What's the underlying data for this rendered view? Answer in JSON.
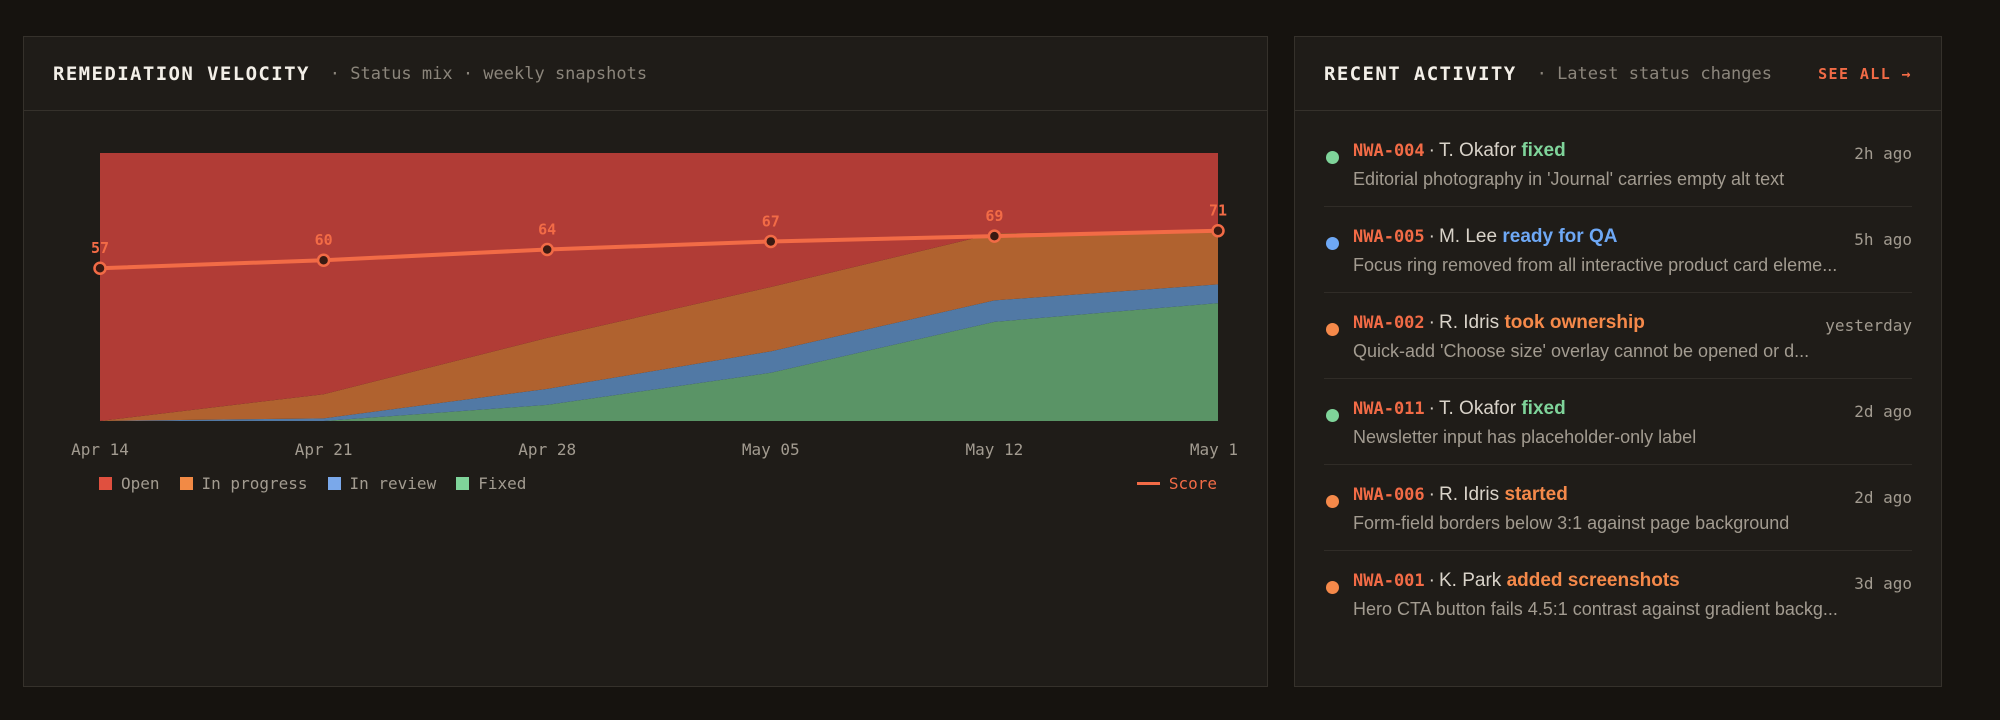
{
  "colors": {
    "open": "#b13c36",
    "in_progress": "#b0622f",
    "in_review": "#5179a5",
    "fixed": "#5a9466",
    "score": "#f26b46",
    "accent": "#f26b46",
    "blue_action": "#6ea8f5",
    "green_action": "#7fd49a",
    "orange_action": "#f5894a"
  },
  "velocity": {
    "title": "REMEDIATION VELOCITY",
    "subtitle": "· Status mix · weekly snapshots"
  },
  "chart_data": {
    "type": "area",
    "stacked": true,
    "normalized": true,
    "categories": [
      "Apr 14",
      "Apr 21",
      "Apr 28",
      "May 05",
      "May 12",
      "May 1"
    ],
    "series": [
      {
        "name": "Fixed",
        "key": "fixed",
        "values": [
          0.0,
          0.0,
          0.06,
          0.18,
          0.37,
          0.44
        ]
      },
      {
        "name": "In review",
        "key": "in_review",
        "values": [
          0.0,
          0.01,
          0.06,
          0.08,
          0.08,
          0.07
        ]
      },
      {
        "name": "In progress",
        "key": "in_progress",
        "values": [
          0.0,
          0.09,
          0.19,
          0.24,
          0.25,
          0.2
        ]
      },
      {
        "name": "Open",
        "key": "open",
        "values": [
          1.0,
          0.9,
          0.69,
          0.5,
          0.3,
          0.29
        ]
      }
    ],
    "score": {
      "name": "Score",
      "values": [
        57,
        60,
        64,
        67,
        69,
        71
      ]
    },
    "score_range": [
      0,
      100
    ],
    "legend_position": "bottom",
    "grid": false
  },
  "legend": {
    "open": "Open",
    "in_progress": "In progress",
    "in_review": "In review",
    "fixed": "Fixed",
    "score": "Score"
  },
  "activity": {
    "title": "RECENT ACTIVITY",
    "subtitle": "· Latest status changes",
    "see_all": "SEE ALL →",
    "items": [
      {
        "id": "NWA-004",
        "sep": "·",
        "user": "T. Okafor",
        "action": "fixed",
        "action_color": "#7fd49a",
        "dot_color": "#7fd49a",
        "description": "Editorial photography in 'Journal' carries empty alt text",
        "time": "2h ago"
      },
      {
        "id": "NWA-005",
        "sep": "·",
        "user": "M. Lee",
        "action": "ready for QA",
        "action_color": "#6ea8f5",
        "dot_color": "#6ea8f5",
        "description": "Focus ring removed from all interactive product card eleme...",
        "time": "5h ago"
      },
      {
        "id": "NWA-002",
        "sep": "·",
        "user": "R. Idris",
        "action": "took ownership",
        "action_color": "#f5894a",
        "dot_color": "#f5894a",
        "description": "Quick-add 'Choose size' overlay cannot be opened or d...",
        "time": "yesterday"
      },
      {
        "id": "NWA-011",
        "sep": "·",
        "user": "T. Okafor",
        "action": "fixed",
        "action_color": "#7fd49a",
        "dot_color": "#7fd49a",
        "description": "Newsletter input has placeholder-only label",
        "time": "2d ago"
      },
      {
        "id": "NWA-006",
        "sep": "·",
        "user": "R. Idris",
        "action": "started",
        "action_color": "#f5894a",
        "dot_color": "#f5894a",
        "description": "Form-field borders below 3:1 against page background",
        "time": "2d ago"
      },
      {
        "id": "NWA-001",
        "sep": "·",
        "user": "K. Park",
        "action": "added screenshots",
        "action_color": "#f5894a",
        "dot_color": "#f5894a",
        "description": "Hero CTA button fails 4.5:1 contrast against gradient backg...",
        "time": "3d ago"
      }
    ]
  }
}
